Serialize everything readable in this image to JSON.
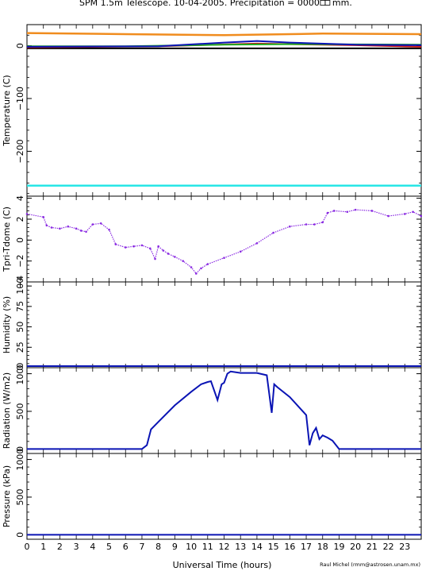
{
  "header": {
    "title": "SPM 1.5m Telescope. 10-04-2005. Precipitation = 0000",
    "title_suffix": "mm."
  },
  "footer": {
    "xlabel": "Universal Time (hours)",
    "credit": "Raul Michel (rmm@astrosen.unam.mx)"
  },
  "colors": {
    "orange": "#f08c1e",
    "black": "#000000",
    "red": "#c81414",
    "green": "#1eaa1e",
    "blue": "#0a14b4",
    "cyan": "#28e6e6",
    "purple": "#8a2be2",
    "navy": "#0a14b4"
  },
  "chart_data": [
    {
      "type": "line",
      "ylabel": "Temperature (C)",
      "xlim": [
        0,
        24
      ],
      "ylim": [
        -285,
        40
      ],
      "yticks": [
        0,
        -100,
        -200
      ],
      "series": [
        {
          "color": "orange",
          "x": [
            0,
            6,
            12,
            18,
            24
          ],
          "y": [
            24,
            22,
            20,
            23,
            22
          ]
        },
        {
          "color": "black",
          "x": [
            0,
            24
          ],
          "y": [
            -5,
            -5
          ]
        },
        {
          "color": "red",
          "x": [
            0,
            8,
            14,
            20,
            24
          ],
          "y": [
            -3,
            -1,
            4,
            1,
            -2
          ]
        },
        {
          "color": "green",
          "x": [
            0,
            6,
            12,
            16,
            24
          ],
          "y": [
            -1,
            -1,
            2,
            3,
            2
          ]
        },
        {
          "color": "blue",
          "x": [
            0,
            8,
            12,
            14,
            16,
            20,
            24
          ],
          "y": [
            -2,
            -1,
            6,
            9,
            6,
            2,
            1
          ]
        },
        {
          "color": "cyan",
          "x": [
            0,
            24
          ],
          "y": [
            -265,
            -265
          ]
        }
      ]
    },
    {
      "type": "scatter",
      "ylabel": "Tpri-Tdome (C)",
      "xlim": [
        0,
        24
      ],
      "ylim": [
        -4,
        4.2
      ],
      "yticks": [
        4,
        2,
        0,
        -2,
        -4
      ],
      "series": [
        {
          "color": "purple",
          "x": [
            0,
            1,
            1.2,
            1.5,
            2,
            2.5,
            3,
            3.3,
            3.6,
            4,
            4.5,
            5,
            5.4,
            6,
            6.5,
            7,
            7.5,
            7.8,
            8,
            8.3,
            8.6,
            9,
            9.5,
            10,
            10.3,
            10.6,
            11,
            12,
            13,
            14,
            15,
            16,
            17,
            17.5,
            18,
            18.3,
            18.7,
            19.5,
            20,
            21,
            22,
            23,
            23.5,
            24
          ],
          "y": [
            2.5,
            2.2,
            1.4,
            1.2,
            1.1,
            1.3,
            1.1,
            0.9,
            0.8,
            1.5,
            1.6,
            1.0,
            -0.4,
            -0.7,
            -0.6,
            -0.5,
            -0.8,
            -1.8,
            -0.6,
            -1.0,
            -1.3,
            -1.6,
            -2.0,
            -2.6,
            -3.2,
            -2.7,
            -2.3,
            -1.7,
            -1.1,
            -0.3,
            0.7,
            1.3,
            1.5,
            1.5,
            1.7,
            2.6,
            2.8,
            2.7,
            2.9,
            2.8,
            2.3,
            2.5,
            2.7,
            2.3
          ]
        }
      ]
    },
    {
      "type": "line",
      "ylabel": "Humidity (%)",
      "xlim": [
        0,
        24
      ],
      "ylim": [
        0,
        105
      ],
      "yticks": [
        0,
        25,
        50,
        75,
        100
      ],
      "series": [
        {
          "color": "navy",
          "x": [
            0,
            6,
            12,
            18,
            24
          ],
          "y": [
            2,
            2,
            2,
            2,
            2
          ]
        }
      ]
    },
    {
      "type": "line",
      "ylabel": "Radiation (W/m2)",
      "xlim": [
        0,
        24
      ],
      "ylim": [
        -60,
        1080
      ],
      "yticks": [
        0,
        500,
        1000
      ],
      "series": [
        {
          "color": "navy",
          "x": [
            0,
            7,
            7.3,
            7.55,
            8,
            9,
            10,
            10.6,
            11,
            11.2,
            11.6,
            11.85,
            12,
            12.2,
            12.4,
            13,
            14,
            14.6,
            14.9,
            15.05,
            15.25,
            16,
            16.5,
            17,
            17.2,
            17.4,
            17.6,
            17.8,
            18,
            18.3,
            18.6,
            19,
            24
          ],
          "y": [
            0,
            0,
            50,
            260,
            360,
            580,
            760,
            860,
            890,
            900,
            650,
            860,
            880,
            1000,
            1030,
            1010,
            1010,
            980,
            480,
            860,
            820,
            690,
            570,
            450,
            50,
            210,
            280,
            130,
            180,
            150,
            110,
            0,
            0
          ]
        }
      ]
    },
    {
      "type": "line",
      "ylabel": "Pressure (kPa)",
      "xlim": [
        0,
        24
      ],
      "ylim": [
        -60,
        1080
      ],
      "yticks": [
        0,
        500,
        1000
      ],
      "series": [
        {
          "color": "navy",
          "x": [
            0,
            24
          ],
          "y": [
            0,
            0
          ]
        }
      ]
    }
  ]
}
